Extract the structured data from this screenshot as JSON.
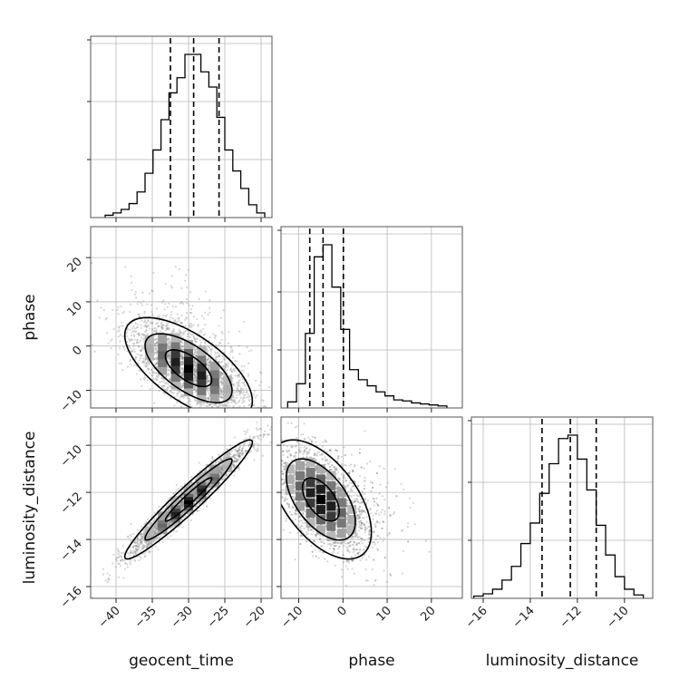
{
  "chart_data": {
    "type": "corner",
    "parameters": [
      "geocent_time",
      "phase",
      "luminosity_distance"
    ],
    "axis_labels": {
      "x": [
        "geocent_time",
        "phase",
        "luminosity_distance"
      ],
      "y": [
        "",
        "phase",
        "luminosity_distance"
      ]
    },
    "ranges": {
      "geocent_time": [
        -43.5,
        -18.5
      ],
      "phase": [
        -14,
        27
      ],
      "luminosity_distance": [
        -16.5,
        -8.8
      ]
    },
    "ticks": {
      "geocent_time": [
        -40,
        -35,
        -30,
        -25,
        -20
      ],
      "phase": [
        -10,
        0,
        10,
        20
      ],
      "luminosity_distance": [
        -16,
        -14,
        -12,
        -10
      ]
    },
    "tick_labels": {
      "geocent_time": [
        "−40",
        "−35",
        "−30",
        "−25",
        "−20"
      ],
      "phase": [
        "−10",
        "0",
        "10",
        "20"
      ],
      "luminosity_distance": [
        "−16",
        "−14",
        "−12",
        "−10"
      ]
    },
    "quantiles": {
      "geocent_time": [
        -32.5,
        -29.3,
        -25.8
      ],
      "phase": [
        -7.5,
        -4.5,
        0.1
      ],
      "luminosity_distance": [
        -13.5,
        -12.3,
        -11.2
      ]
    },
    "histograms": {
      "geocent_time": {
        "edges": [
          -41.5,
          -40.4,
          -39.3,
          -38.2,
          -37.1,
          -36.0,
          -34.9,
          -33.8,
          -32.7,
          -31.6,
          -30.5,
          -29.4,
          -28.3,
          -27.2,
          -26.1,
          -25.0,
          -23.9,
          -22.8,
          -21.7,
          -20.6,
          -19.5
        ],
        "counts": [
          2,
          4,
          7,
          12,
          22,
          38,
          58,
          84,
          107,
          120,
          140,
          140,
          125,
          112,
          86,
          58,
          40,
          25,
          11,
          4
        ]
      },
      "phase": {
        "edges": [
          -12.5,
          -10.5,
          -8.5,
          -6.5,
          -4.5,
          -2.5,
          -0.5,
          1.5,
          3.5,
          5.5,
          7.5,
          9.5,
          11.5,
          13.5,
          15.5,
          17.5,
          19.5,
          21.5,
          23.5
        ],
        "counts": [
          6,
          24,
          74,
          150,
          162,
          120,
          78,
          38,
          28,
          22,
          16,
          12,
          8,
          7,
          5,
          4,
          3,
          2
        ]
      },
      "luminosity_distance": {
        "edges": [
          -16.4,
          -16.0,
          -15.6,
          -15.2,
          -14.8,
          -14.4,
          -14.0,
          -13.6,
          -13.2,
          -12.8,
          -12.4,
          -12.0,
          -11.6,
          -11.2,
          -10.8,
          -10.4,
          -10.0,
          -9.6,
          -9.2
        ],
        "counts": [
          2,
          4,
          8,
          16,
          28,
          48,
          66,
          92,
          118,
          140,
          143,
          122,
          95,
          64,
          38,
          19,
          8,
          3
        ]
      }
    },
    "panels": [
      {
        "row": 1,
        "col": 0,
        "x": "geocent_time",
        "y": "phase",
        "mean": [
          -30,
          -5
        ],
        "sd": [
          4,
          5.2
        ],
        "rho": -0.65
      },
      {
        "row": 2,
        "col": 0,
        "x": "geocent_time",
        "y": "luminosity_distance",
        "mean": [
          -30,
          -12.3
        ],
        "sd": [
          4,
          1.15
        ],
        "rho": 0.96
      },
      {
        "row": 2,
        "col": 1,
        "x": "phase",
        "y": "luminosity_distance",
        "mean": [
          -5,
          -12.3
        ],
        "sd": [
          5.2,
          1.15
        ],
        "rho": -0.55
      }
    ]
  }
}
